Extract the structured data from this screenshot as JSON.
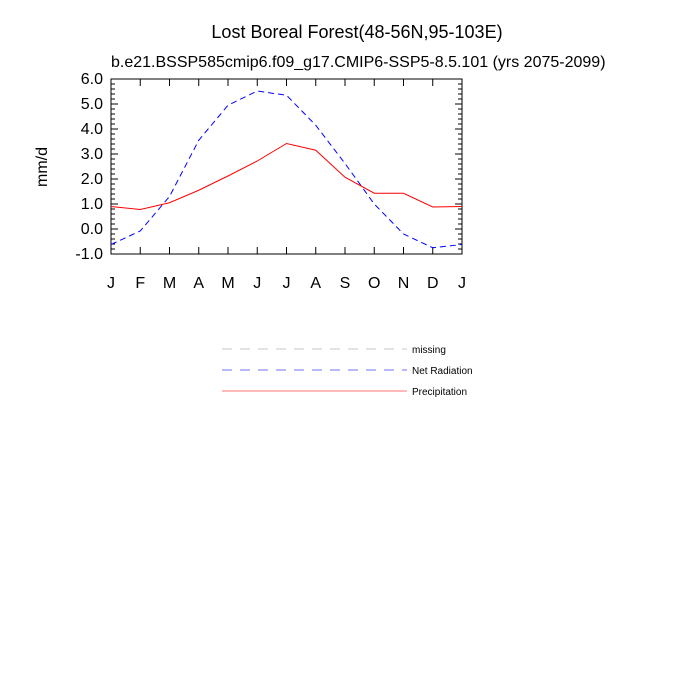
{
  "chart_data": {
    "type": "line",
    "title": "Lost Boreal Forest(48-56N,95-103E)",
    "subtitle": "b.e21.BSSP585cmip6.f09_g17.CMIP6-SSP5-8.5.101 (yrs 2075-2099)",
    "xlabel": "",
    "ylabel": "mm/d",
    "x_tick_labels": [
      "J",
      "F",
      "M",
      "A",
      "M",
      "J",
      "J",
      "A",
      "S",
      "O",
      "N",
      "D",
      "J"
    ],
    "y_ticks": [
      -1.0,
      0.0,
      1.0,
      2.0,
      3.0,
      4.0,
      5.0,
      6.0
    ],
    "y_tick_labels": [
      "-1.0",
      "0.0",
      "1.0",
      "2.0",
      "3.0",
      "4.0",
      "5.0",
      "6.0"
    ],
    "ylim": [
      -1.0,
      6.0
    ],
    "grid": false,
    "legend_position": "below",
    "series": [
      {
        "name": "missing",
        "color": "#999999",
        "dash": "dashed",
        "values": []
      },
      {
        "name": "Net Radiation",
        "color": "#0000ff",
        "dash": "dashed",
        "values": [
          -0.62,
          -0.08,
          1.3,
          3.55,
          4.95,
          5.52,
          5.35,
          4.15,
          2.62,
          1.0,
          -0.2,
          -0.75,
          -0.62
        ]
      },
      {
        "name": "Precipitation",
        "color": "#ff0000",
        "dash": "solid",
        "values": [
          0.9,
          0.78,
          1.05,
          1.55,
          2.12,
          2.72,
          3.42,
          3.15,
          2.07,
          1.43,
          1.43,
          0.88,
          0.9
        ]
      }
    ]
  }
}
